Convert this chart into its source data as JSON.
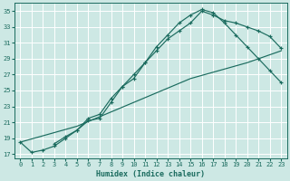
{
  "xlabel": "Humidex (Indice chaleur)",
  "bg_color": "#cde8e4",
  "line_color": "#1a6b5e",
  "grid_color": "#ffffff",
  "xlim": [
    -0.5,
    23.5
  ],
  "ylim": [
    16.5,
    36.0
  ],
  "yticks": [
    17,
    19,
    21,
    23,
    25,
    27,
    29,
    31,
    33,
    35
  ],
  "xticks": [
    0,
    1,
    2,
    3,
    4,
    5,
    6,
    7,
    8,
    9,
    10,
    11,
    12,
    13,
    14,
    15,
    16,
    17,
    18,
    19,
    20,
    21,
    22,
    23
  ],
  "line1_x": [
    0,
    1,
    2,
    3,
    4,
    5,
    6,
    7,
    8,
    9,
    10,
    11,
    12,
    13,
    14,
    15,
    16,
    17,
    18,
    19,
    20,
    21,
    22,
    23
  ],
  "line1_y": [
    18.5,
    17.2,
    17.5,
    18.0,
    19.0,
    20.0,
    21.2,
    21.5,
    23.5,
    25.5,
    26.5,
    28.5,
    30.0,
    31.5,
    32.5,
    33.5,
    35.0,
    34.5,
    33.8,
    33.5,
    33.0,
    32.5,
    31.8,
    30.3
  ],
  "line2_x": [
    3,
    4,
    5,
    6,
    7,
    8,
    9,
    10,
    11,
    12,
    13,
    14,
    15,
    16,
    17,
    18,
    19,
    20,
    21,
    22,
    23
  ],
  "line2_y": [
    18.3,
    19.2,
    20.0,
    21.5,
    22.0,
    24.0,
    25.5,
    27.0,
    28.5,
    30.5,
    32.0,
    33.5,
    34.5,
    35.2,
    34.8,
    33.5,
    32.0,
    30.5,
    29.0,
    27.5,
    26.0
  ],
  "line3_x": [
    0,
    5,
    10,
    15,
    20,
    23
  ],
  "line3_y": [
    18.5,
    20.5,
    23.5,
    26.5,
    28.5,
    30.0
  ]
}
